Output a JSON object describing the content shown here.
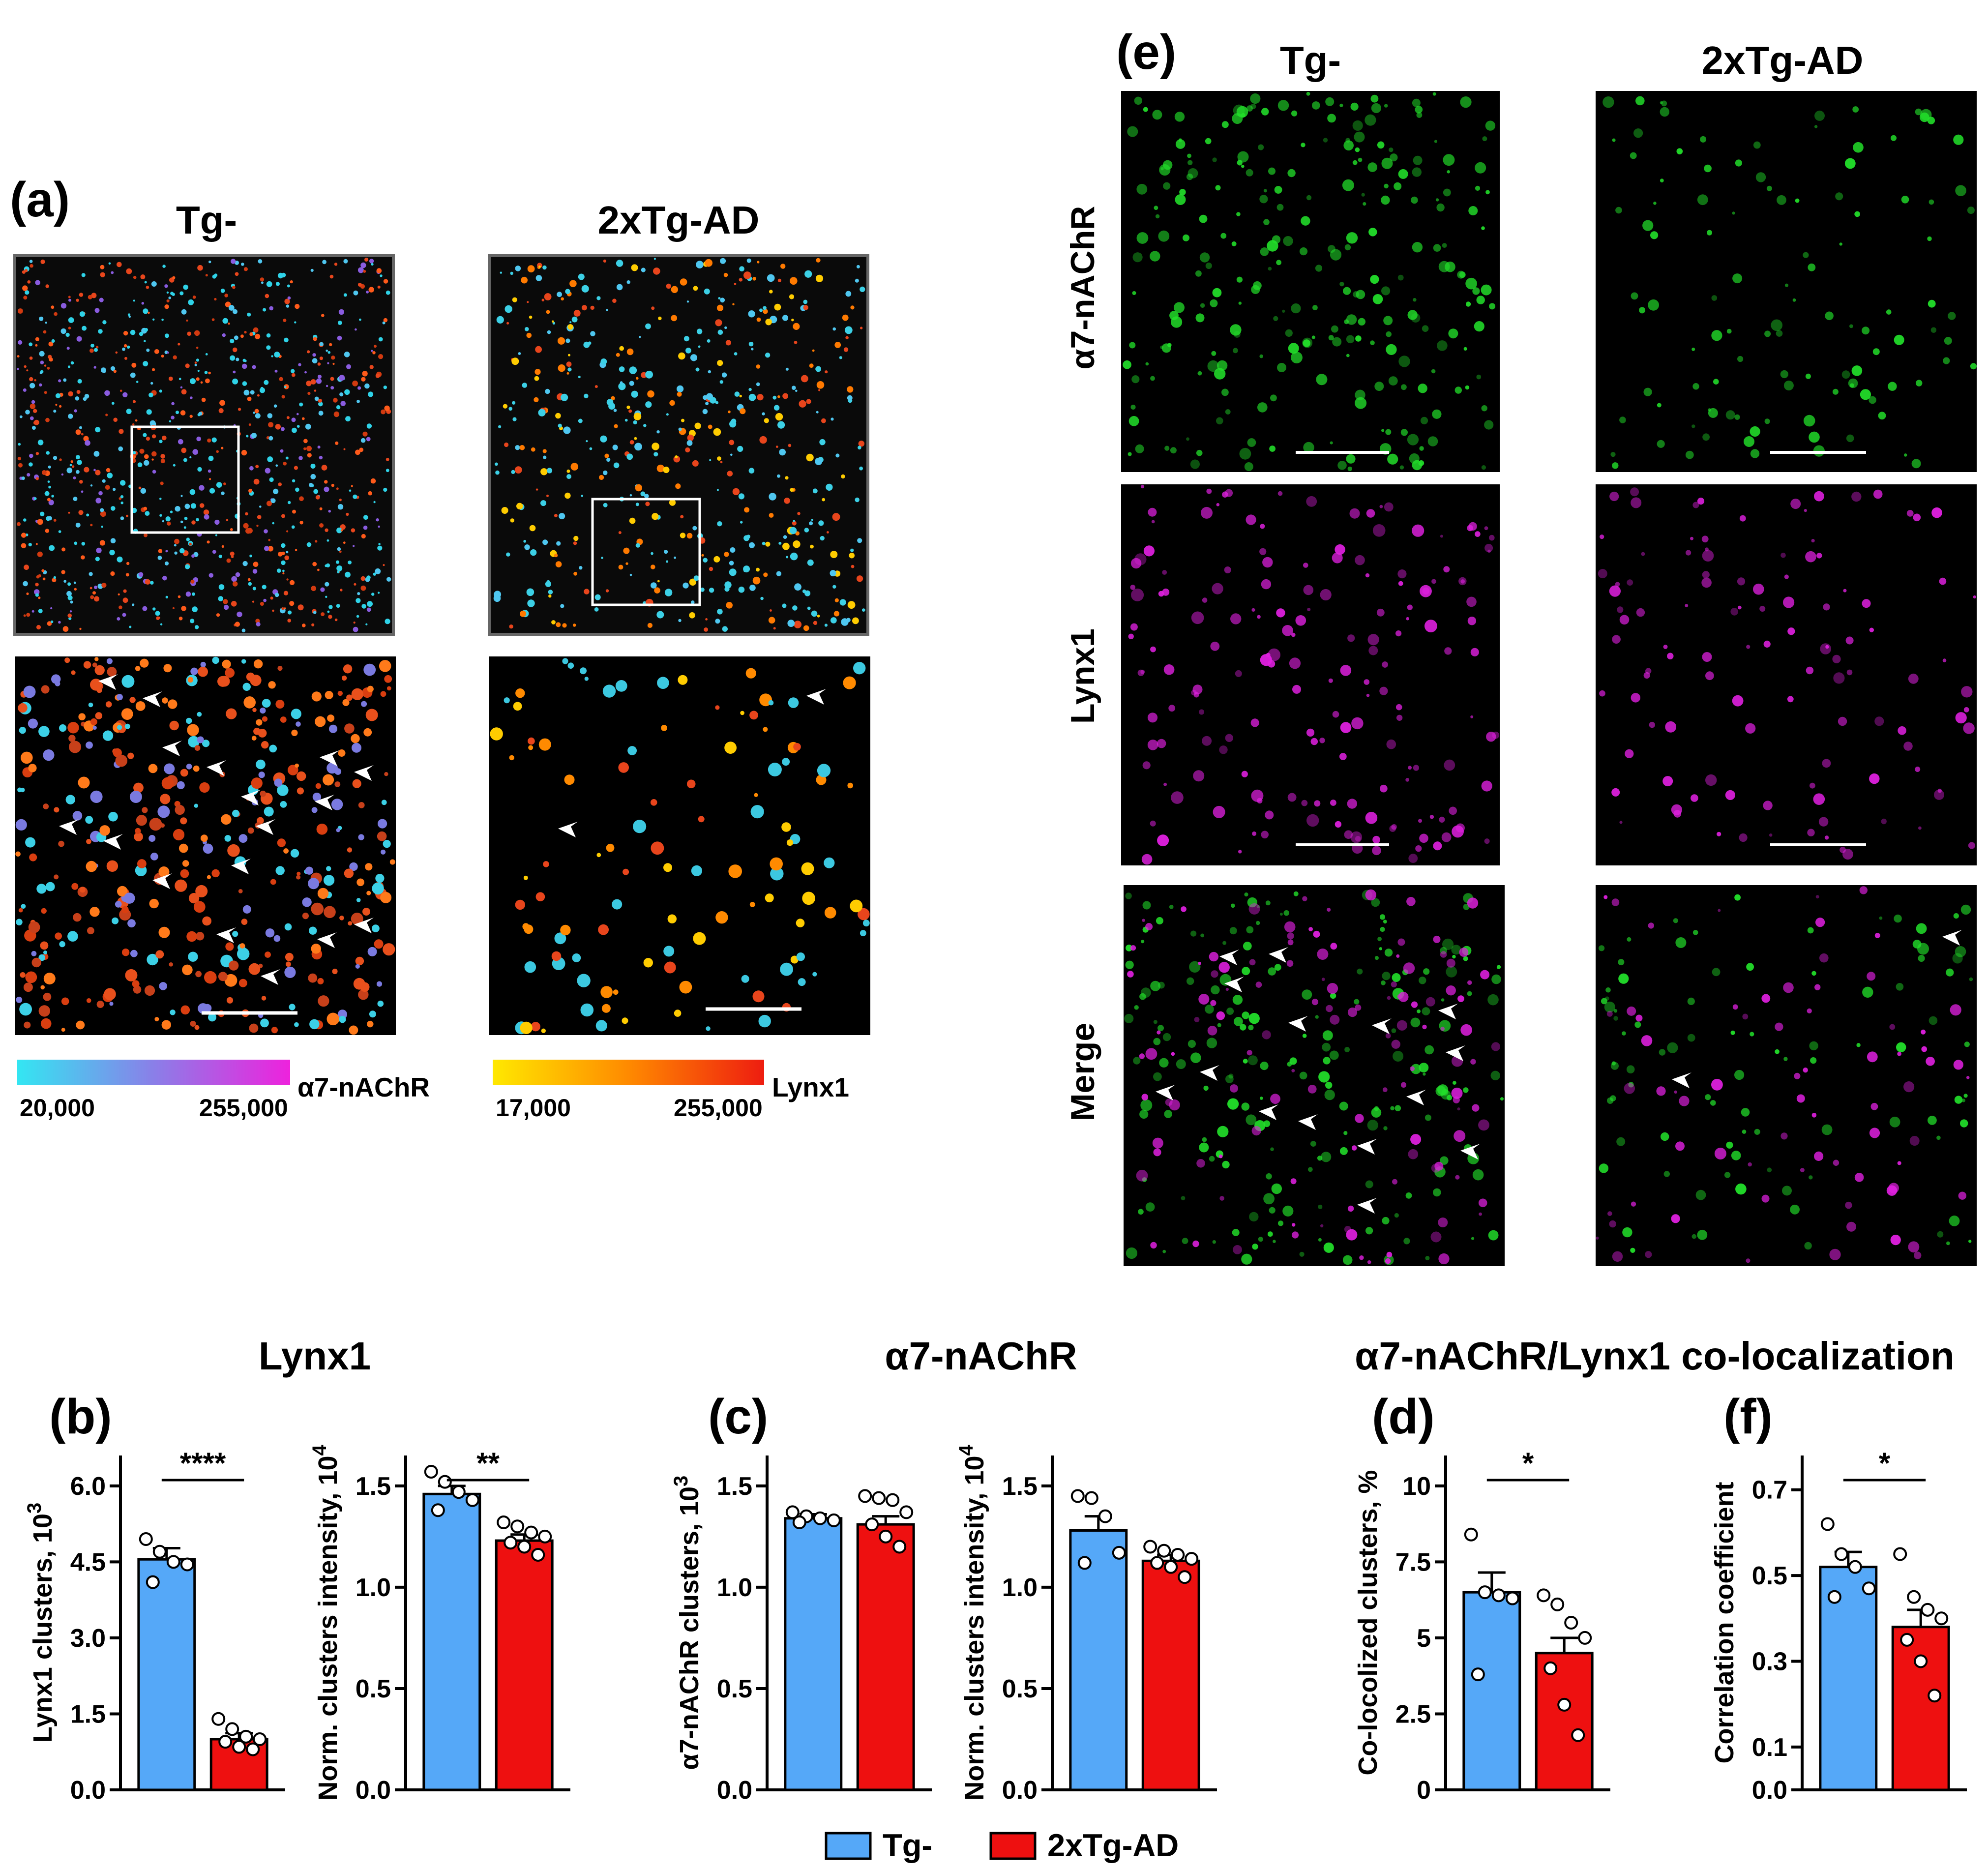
{
  "panel_labels": {
    "a": "(a)",
    "b": "(b)",
    "c": "(c)",
    "d": "(d)",
    "e": "(e)",
    "f": "(f)"
  },
  "panel_a": {
    "col1": "Tg-",
    "col2": "2xTg-AD",
    "colorbar1": {
      "min_label": "20,000",
      "max_label": "255,000",
      "name": "α7-nAChR",
      "colors": [
        "#33e6f2",
        "#8a7fe8",
        "#ee22dd"
      ]
    },
    "colorbar2": {
      "min_label": "17,000",
      "max_label": "255,000",
      "name": "Lynx1",
      "colors": [
        "#ffe800",
        "#ff8a00",
        "#ee1d10"
      ]
    },
    "image_names": [
      "3d-render-tg-overview",
      "3d-render-2xtg-overview",
      "3d-render-tg-zoom",
      "3d-render-2xtg-zoom"
    ]
  },
  "panel_e": {
    "col1": "Tg-",
    "col2": "2xTg-AD",
    "rows": [
      "α7-nAChR",
      "Lynx1",
      "Merge"
    ],
    "channel_colors": {
      "a7": "#22e02a",
      "lynx1": "#e020e0"
    }
  },
  "group_titles": {
    "lynx1": "Lynx1",
    "a7": "α7-nAChR",
    "coloc": "α7-nAChR/Lynx1 co-localization"
  },
  "legend": {
    "tg": "Tg-",
    "ad": "2xTg-AD"
  },
  "colors": {
    "tg": "#55a8f8",
    "ad": "#ee1010"
  },
  "chart_data": [
    {
      "id": "b1",
      "type": "bar",
      "title": "Lynx1",
      "ylabel": "Lynx1 clusters, 10",
      "ylabel_sup": "3",
      "yticks": [
        0,
        1.5,
        3,
        4.5,
        6
      ],
      "ytick_labels": [
        "0.0",
        "1.5",
        "3.0",
        "4.5",
        "6.0"
      ],
      "ylim": [
        0,
        6.6
      ],
      "categories": [
        "Tg-",
        "2xTg-AD"
      ],
      "values": [
        4.55,
        1.0
      ],
      "sem": [
        0.22,
        0.12
      ],
      "points": [
        [
          4.95,
          4.7,
          4.5,
          4.45,
          4.1
        ],
        [
          1.4,
          1.2,
          1.05,
          1.0,
          0.95,
          0.85,
          0.8
        ]
      ],
      "significance": "****"
    },
    {
      "id": "b2",
      "type": "bar",
      "title": "Lynx1",
      "ylabel": "Norm. clusters intensity, 10",
      "ylabel_sup": "4",
      "yticks": [
        0,
        0.5,
        1,
        1.5
      ],
      "ytick_labels": [
        "0.0",
        "0.5",
        "1.0",
        "1.5"
      ],
      "ylim": [
        0,
        1.65
      ],
      "categories": [
        "Tg-",
        "2xTg-AD"
      ],
      "values": [
        1.46,
        1.23
      ],
      "sem": [
        0.04,
        0.03
      ],
      "points": [
        [
          1.57,
          1.52,
          1.47,
          1.43,
          1.38
        ],
        [
          1.32,
          1.3,
          1.27,
          1.25,
          1.22,
          1.2,
          1.16
        ]
      ],
      "significance": "**"
    },
    {
      "id": "c1",
      "type": "bar",
      "title": "α7-nAChR",
      "ylabel": "α7-nAChR clusters, 10",
      "ylabel_sup": "3",
      "yticks": [
        0,
        0.5,
        1,
        1.5
      ],
      "ytick_labels": [
        "0.0",
        "0.5",
        "1.0",
        "1.5"
      ],
      "ylim": [
        0,
        1.65
      ],
      "categories": [
        "Tg-",
        "2xTg-AD"
      ],
      "values": [
        1.34,
        1.31
      ],
      "sem": [
        0.02,
        0.04
      ],
      "points": [
        [
          1.37,
          1.35,
          1.34,
          1.33,
          1.32
        ],
        [
          1.45,
          1.44,
          1.43,
          1.37,
          1.31,
          1.25,
          1.2
        ]
      ],
      "significance": ""
    },
    {
      "id": "c2",
      "type": "bar",
      "title": "α7-nAChR",
      "ylabel": "Norm. clusters intensity, 10",
      "ylabel_sup": "4",
      "yticks": [
        0,
        0.5,
        1,
        1.5
      ],
      "ytick_labels": [
        "0.0",
        "0.5",
        "1.0",
        "1.5"
      ],
      "ylim": [
        0,
        1.65
      ],
      "categories": [
        "Tg-",
        "2xTg-AD"
      ],
      "values": [
        1.28,
        1.13
      ],
      "sem": [
        0.07,
        0.03
      ],
      "points": [
        [
          1.45,
          1.44,
          1.35,
          1.17,
          1.12
        ],
        [
          1.2,
          1.18,
          1.16,
          1.14,
          1.12,
          1.1,
          1.05
        ]
      ],
      "significance": ""
    },
    {
      "id": "d",
      "type": "bar",
      "title": "α7-nAChR/Lynx1 co-localization",
      "ylabel": "Co-locolized clusters, %",
      "ylabel_sup": "",
      "yticks": [
        0,
        2.5,
        5,
        7.5,
        10
      ],
      "ytick_labels": [
        "0",
        "2.5",
        "5",
        "7.5",
        "10"
      ],
      "ylim": [
        0,
        11
      ],
      "categories": [
        "Tg-",
        "2xTg-AD"
      ],
      "values": [
        6.5,
        4.5
      ],
      "sem": [
        0.65,
        0.5
      ],
      "points": [
        [
          8.4,
          6.5,
          6.4,
          6.3,
          3.8
        ],
        [
          6.4,
          6.1,
          5.5,
          5.0,
          4.0,
          2.8,
          1.8
        ]
      ],
      "significance": "*"
    },
    {
      "id": "f",
      "type": "bar",
      "title": "α7-nAChR/Lynx1 co-localization",
      "ylabel": "Correlation coefficient",
      "ylabel_sup": "",
      "yticks": [
        0,
        0.1,
        0.3,
        0.5,
        0.7
      ],
      "ytick_labels": [
        "0.0",
        "0.1",
        "0.3",
        "0.5",
        "0.7"
      ],
      "ylim": [
        0,
        0.78
      ],
      "categories": [
        "Tg-",
        "2xTg-AD"
      ],
      "values": [
        0.52,
        0.38
      ],
      "sem": [
        0.035,
        0.04
      ],
      "points": [
        [
          0.62,
          0.55,
          0.52,
          0.47,
          0.45
        ],
        [
          0.55,
          0.45,
          0.42,
          0.4,
          0.35,
          0.3,
          0.22
        ]
      ],
      "significance": "*"
    }
  ]
}
